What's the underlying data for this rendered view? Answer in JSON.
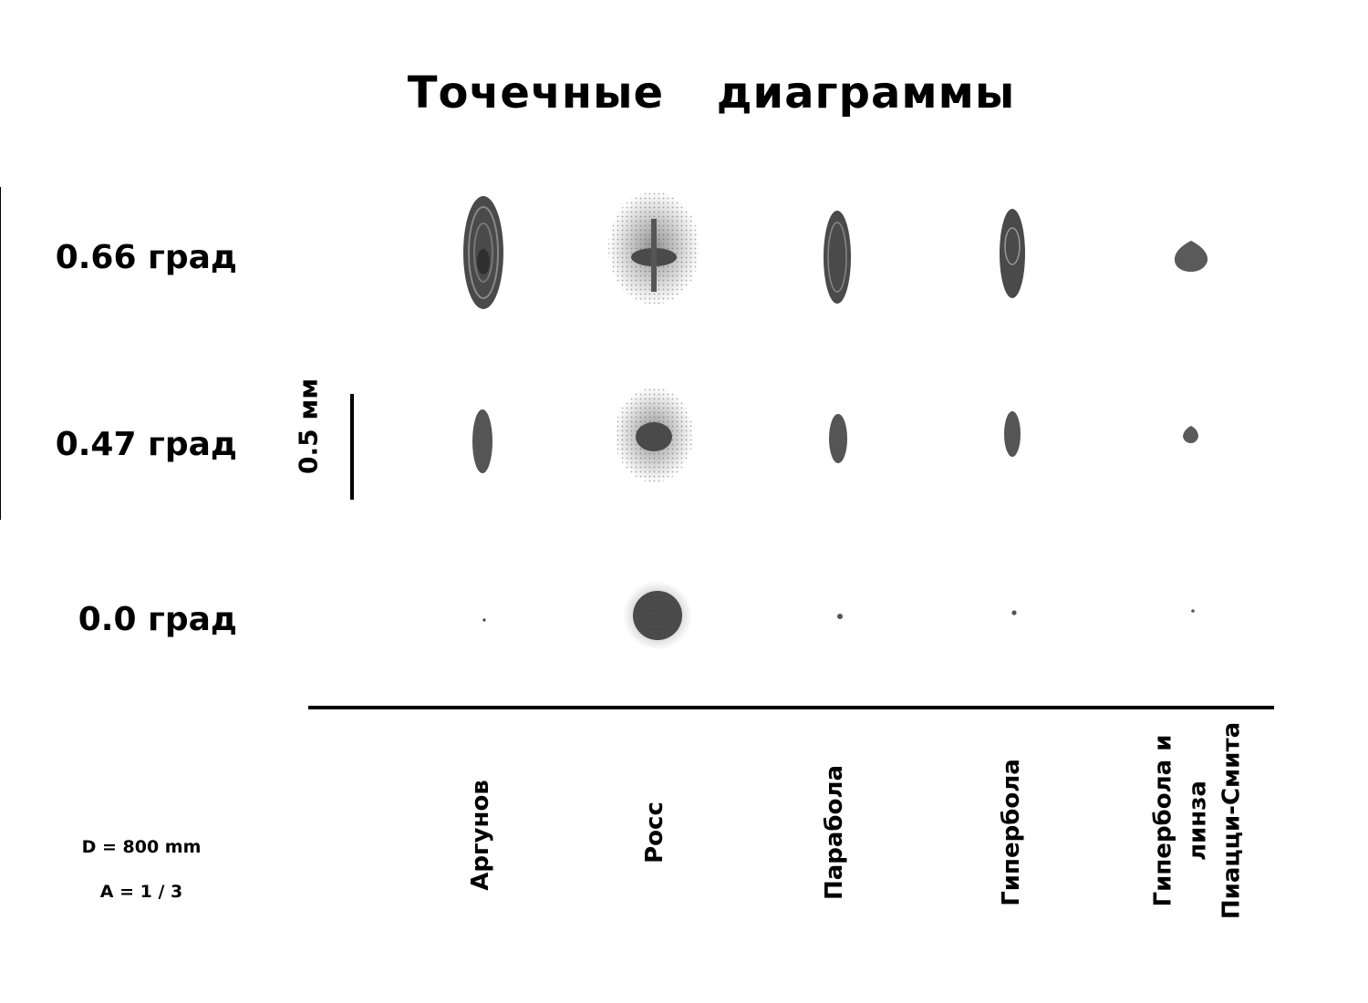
{
  "title": "Точечные диаграммы",
  "field_angles": [
    "0.66 град",
    "0.47 град",
    "0.0 град"
  ],
  "scale_bar": "0.5 мм",
  "designs": [
    "Аргунов",
    "Росс",
    "Парабола",
    "Гипербола",
    "Гипербола и\nлинза\nПиацци-Смита"
  ],
  "parameters": {
    "diameter": "D = 800 mm",
    "aperture": "A = 1 / 3"
  },
  "colors": {
    "spot": "#5a5a5a",
    "spot_dark": "#3a3a3a",
    "ink": "#000000"
  }
}
